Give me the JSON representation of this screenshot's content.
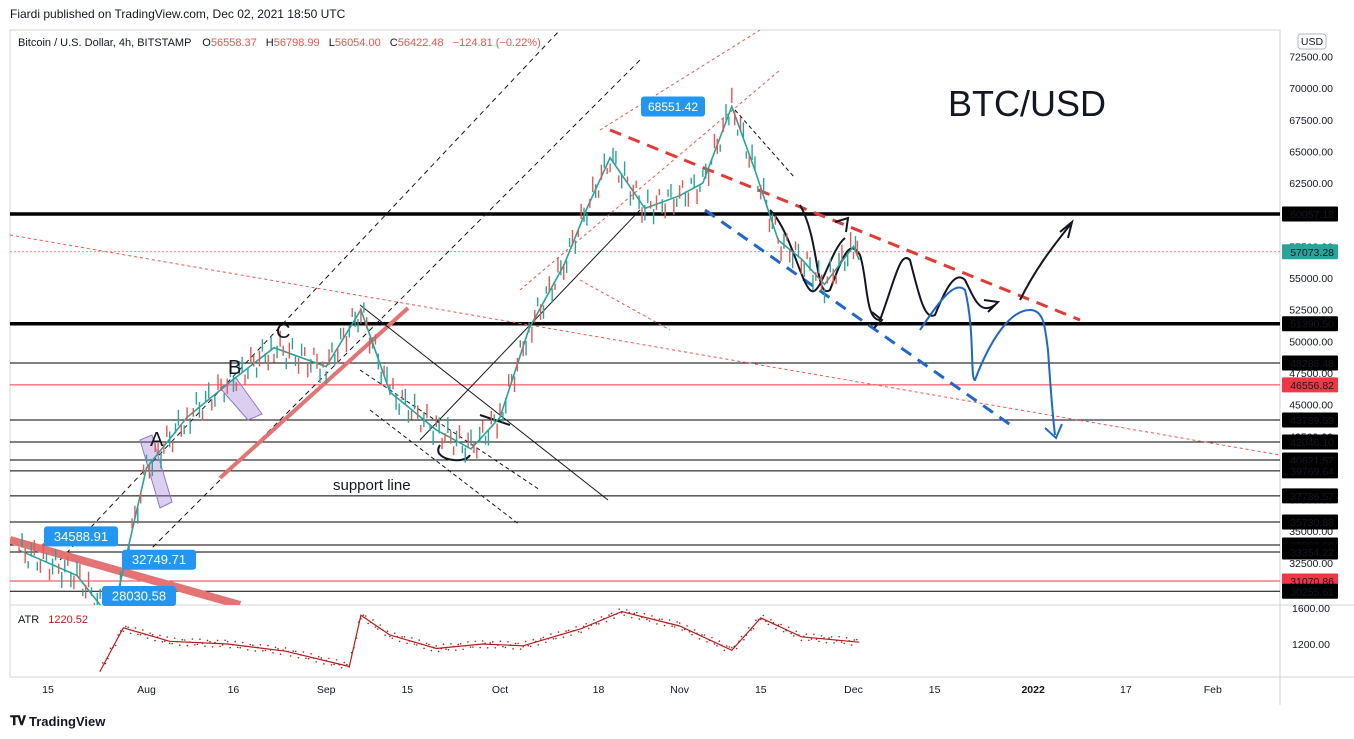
{
  "header": {
    "published_by": "Fiardi published on TradingView.com, Dec 02, 2021 18:50 UTC"
  },
  "legend": {
    "symbol": "Bitcoin / U.S. Dollar, 4h, BITSTAMP",
    "open_label": "O",
    "open": "56558.37",
    "high_label": "H",
    "high": "56798.99",
    "low_label": "L",
    "low": "56054.00",
    "close_label": "C",
    "close": "56422.48",
    "change": "−124.81 (−0.22%)"
  },
  "currency_button": "USD",
  "annotation_title": "BTC/USD",
  "annotations": {
    "wave_a": "A",
    "wave_b": "B",
    "wave_c": "C",
    "support": "support line"
  },
  "colors": {
    "up": "#26a69a",
    "down": "#ef5350",
    "blue_label": "#2196f3",
    "red_label": "#f23645",
    "black_line": "#000000",
    "pink_zone": "#e57373"
  },
  "chart_data": [
    {
      "type": "line",
      "title": "Bitcoin / U.S. Dollar, 4h, BITSTAMP",
      "ylim": [
        29000,
        75000
      ],
      "y_ticks": [
        "72500.00",
        "70000.00",
        "67500.00",
        "65000.00",
        "62500.00",
        "60000.00",
        "57500.00",
        "55000.00",
        "52500.00",
        "50000.00",
        "47500.00",
        "45000.00",
        "42500.00",
        "40000.00",
        "37500.00",
        "35000.00",
        "32500.00",
        "30000.00"
      ],
      "x_ticks": [
        "15",
        "Aug",
        "16",
        "Sep",
        "15",
        "Oct",
        "18",
        "Nov",
        "15",
        "Dec",
        "15",
        "2022",
        "17",
        "Feb"
      ],
      "series": [
        {
          "x": [
            "Jul 10",
            "Jul 20",
            "Jul 26",
            "Aug 1",
            "Aug 8",
            "Aug 16",
            "Aug 23",
            "Sep 1",
            "Sep 7",
            "Sep 12",
            "Sep 20",
            "Sep 26",
            "Oct 1",
            "Oct 6",
            "Oct 12",
            "Oct 16",
            "Oct 20",
            "Oct 26",
            "Nov 1",
            "Nov 5",
            "Nov 10",
            "Nov 14",
            "Nov 18",
            "Nov 22",
            "Nov 26",
            "Dec 1",
            "Dec 2"
          ],
          "values": [
            33500,
            31500,
            28000,
            40000,
            44000,
            47000,
            49500,
            48000,
            52500,
            46000,
            43000,
            41500,
            44000,
            51000,
            56000,
            60500,
            64500,
            60500,
            61500,
            62500,
            68551,
            63500,
            58000,
            56500,
            54500,
            57500,
            56422
          ]
        }
      ],
      "price_labels": [
        {
          "value": 60057.18,
          "label": "60057.18",
          "style": "black"
        },
        {
          "value": 57073.28,
          "label": "57073.28",
          "style": "green"
        },
        {
          "value": 51390.5,
          "label": "51390.50",
          "style": "black"
        },
        {
          "value": 48288.48,
          "label": "48288.48",
          "style": "black"
        },
        {
          "value": 46556.82,
          "label": "46556.82",
          "style": "red"
        },
        {
          "value": 43789.53,
          "label": "43789.53",
          "style": "black"
        },
        {
          "value": 42046.1,
          "label": "42046.10",
          "style": "black"
        },
        {
          "value": 40621.57,
          "label": "40621.57",
          "style": "black"
        },
        {
          "value": 39769.64,
          "label": "39769.64",
          "style": "black"
        },
        {
          "value": 37786.57,
          "label": "37786.57",
          "style": "black"
        },
        {
          "value": 35730.88,
          "label": "35730.88",
          "style": "black"
        },
        {
          "value": 33908.69,
          "label": "33908.69",
          "style": "black"
        },
        {
          "value": 33354.22,
          "label": "33354.22",
          "style": "black"
        },
        {
          "value": 31070.86,
          "label": "31070.86",
          "style": "red"
        },
        {
          "value": 30255.61,
          "label": "30255.61",
          "style": "black"
        }
      ],
      "callouts": [
        {
          "value": 68551.42,
          "label": "68551.42"
        },
        {
          "value": 34588.91,
          "label": "34588.91"
        },
        {
          "value": 32749.71,
          "label": "32749.71"
        },
        {
          "value": 28030.58,
          "label": "28030.58"
        }
      ]
    },
    {
      "type": "line",
      "title": "ATR",
      "current_label": "1220.52",
      "ylim": [
        800,
        1700
      ],
      "y_ticks": [
        "1600.00",
        "1200.00"
      ],
      "series": [
        {
          "x": [
            "Jul 24",
            "Jul 28",
            "Aug 5",
            "Aug 15",
            "Aug 25",
            "Sep 5",
            "Sep 7",
            "Sep 12",
            "Sep 20",
            "Sep 28",
            "Oct 5",
            "Oct 15",
            "Oct 22",
            "Nov 1",
            "Nov 10",
            "Nov 15",
            "Nov 22",
            "Dec 2"
          ],
          "values": [
            900,
            1380,
            1230,
            1200,
            1120,
            950,
            1520,
            1300,
            1150,
            1200,
            1180,
            1370,
            1560,
            1400,
            1130,
            1490,
            1280,
            1220
          ]
        }
      ]
    }
  ]
}
